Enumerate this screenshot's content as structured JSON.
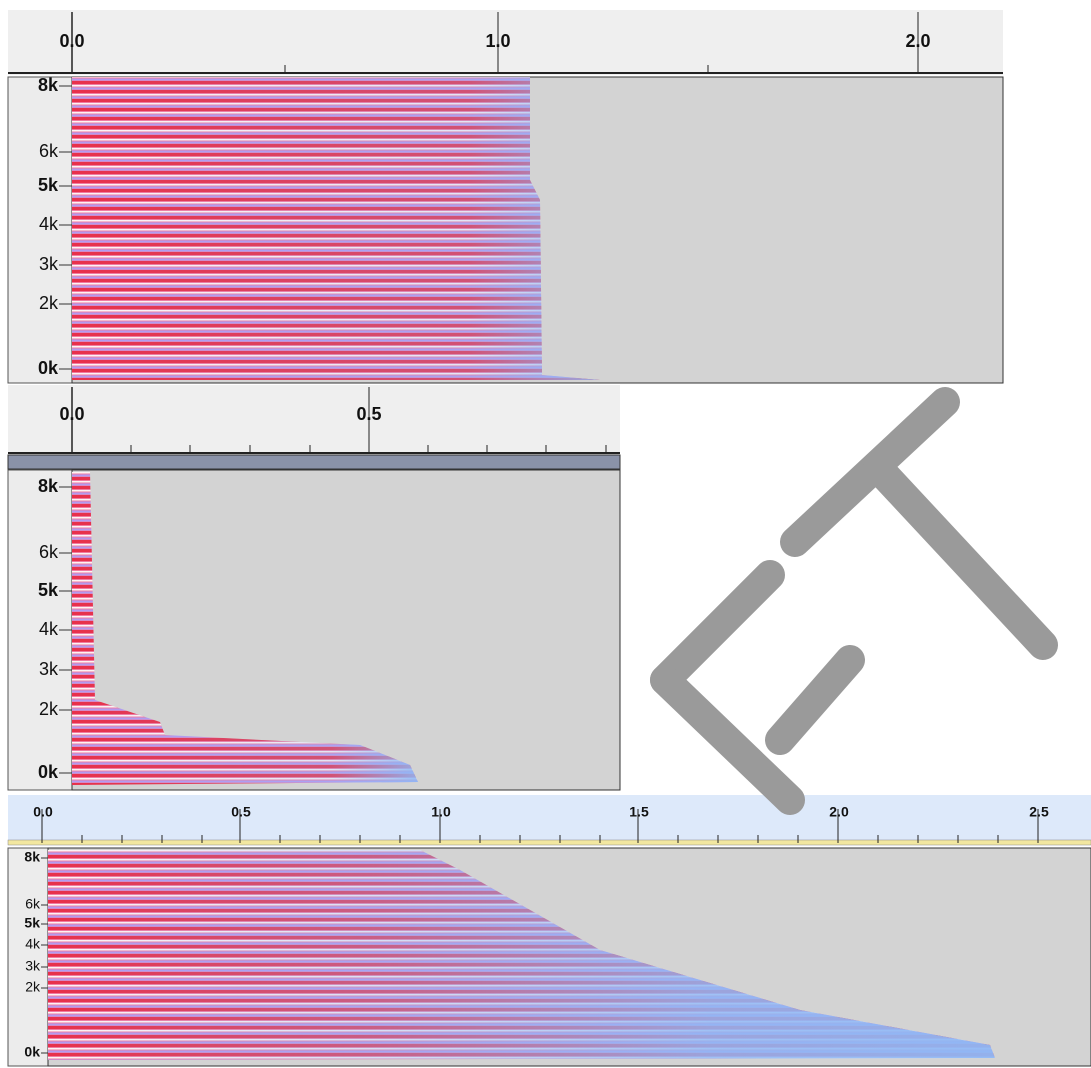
{
  "panels": [
    {
      "time_labels": [
        "0.0",
        "1.0",
        "2.0"
      ],
      "freq_labels": [
        "8k",
        "6k",
        "5k",
        "4k",
        "3k",
        "2k",
        "0k"
      ]
    },
    {
      "time_labels": [
        "0.0",
        "0.5"
      ],
      "freq_labels": [
        "8k",
        "6k",
        "5k",
        "4k",
        "3k",
        "2k",
        "0k"
      ]
    },
    {
      "time_labels": [
        "0.0",
        "0.5",
        "1.0",
        "1.5",
        "2.0",
        "2.5"
      ],
      "freq_labels": [
        "8k",
        "6k",
        "5k",
        "4k",
        "3k",
        "2k",
        "0k"
      ]
    }
  ]
}
